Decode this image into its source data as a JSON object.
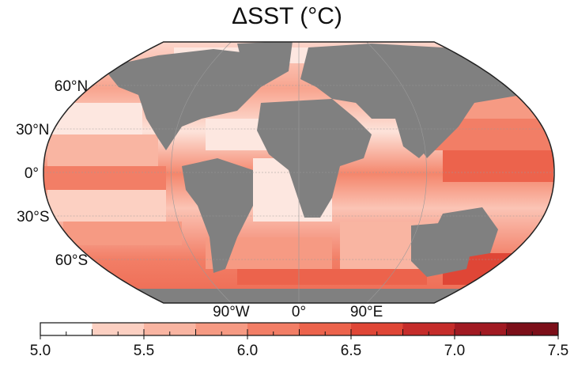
{
  "title": "ΔSST (°C)",
  "map": {
    "projection": "robinson",
    "land_color": "#808080",
    "ocean_gradient_colors": [
      "#ffffff",
      "#fde0d8",
      "#fbc4b5",
      "#f8a48e",
      "#f4866c",
      "#ee6a4f",
      "#e04a39",
      "#c62a2a",
      "#a3161f",
      "#7f0b16",
      "#5a0510"
    ],
    "lat_labels": [
      {
        "text": "60°N",
        "lat": 60
      },
      {
        "text": "30°N",
        "lat": 30
      },
      {
        "text": "0°",
        "lat": 0
      },
      {
        "text": "30°S",
        "lat": -30
      },
      {
        "text": "60°S",
        "lat": -60
      }
    ],
    "lon_labels": [
      {
        "text": "90°W",
        "lon": -90
      },
      {
        "text": "0°",
        "lon": 0
      },
      {
        "text": "90°E",
        "lon": 90
      }
    ]
  },
  "colorbar": {
    "min": 5.0,
    "max": 7.5,
    "step": 0.25,
    "tick_labels": [
      "5.0",
      "5.5",
      "6.0",
      "6.5",
      "7.0",
      "7.5"
    ],
    "tick_values": [
      5.0,
      5.5,
      6.0,
      6.5,
      7.0,
      7.5
    ],
    "colors": [
      "#ffffff",
      "#fde7e0",
      "#fcd0c2",
      "#f9b5a2",
      "#f69a83",
      "#f27e66",
      "#ec634c",
      "#df4636",
      "#c52c2a",
      "#a11a22",
      "#7c0f19",
      "#560712"
    ]
  }
}
